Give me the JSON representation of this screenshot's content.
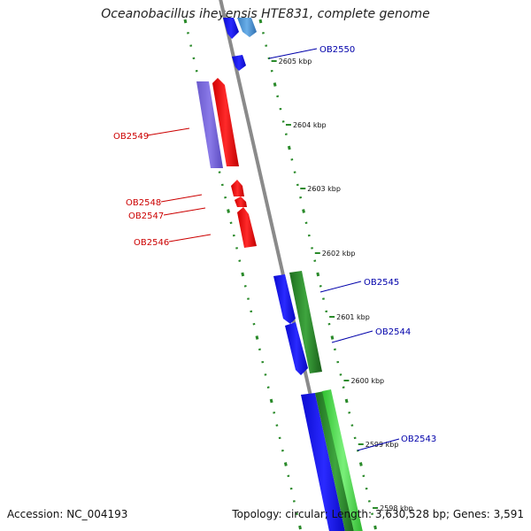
{
  "title": "Oceanobacillus iheyensis HTE831, complete genome",
  "footer": {
    "accession": "Accession: NC_004193",
    "summary": "Topology: circular; Length: 3,630,528 bp; Genes: 3,591"
  },
  "colors": {
    "forward_cds": "#1010e8",
    "reverse_cds": "#ee1111",
    "light_blue": "#4a8fd0",
    "purple": "#7a6ad8",
    "green_dark": "#2e8b2e",
    "green_light": "#45d845",
    "backbone": "#8a8a8a",
    "tick": "#2a8a2a",
    "label_forward": "#0000aa",
    "label_reverse": "#cc0000"
  },
  "kbp_ticks": [
    {
      "label": "2605 kbp"
    },
    {
      "label": "2604 kbp"
    },
    {
      "label": "2603 kbp"
    },
    {
      "label": "2602 kbp"
    },
    {
      "label": "2601 kbp"
    },
    {
      "label": "2600 kbp"
    },
    {
      "label": "2599 kbp"
    },
    {
      "label": "2598 kbp"
    }
  ],
  "gene_labels_forward": [
    {
      "name": "OB2550"
    },
    {
      "name": "OB2545"
    },
    {
      "name": "OB2544"
    },
    {
      "name": "OB2543"
    }
  ],
  "gene_labels_reverse": [
    {
      "name": "OB2549"
    },
    {
      "name": "OB2548"
    },
    {
      "name": "OB2547"
    },
    {
      "name": "OB2546"
    }
  ]
}
